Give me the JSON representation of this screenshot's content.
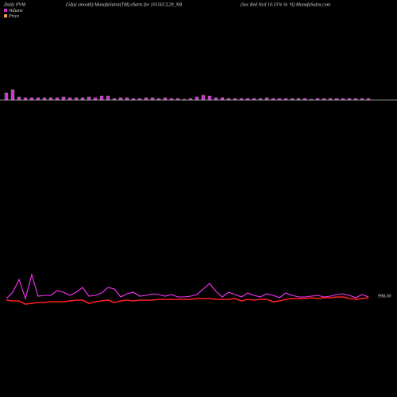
{
  "chart_data": {
    "type": "pvm",
    "title": "Daily PVM",
    "subtitle": "(5day smooth) MunafaSutra(TM) charts for 1015ECL29_NB",
    "annotation": "(Sec Red Ncd 10.15% Sr. Vi) MunafaSutra.com",
    "x": [
      0,
      1,
      2,
      3,
      4,
      5,
      6,
      7,
      8,
      9,
      10,
      11,
      12,
      13,
      14,
      15,
      16,
      17,
      18,
      19,
      20,
      21,
      22,
      23,
      24,
      25,
      26,
      27,
      28,
      29,
      30,
      31,
      32,
      33,
      34,
      35,
      36,
      37,
      38,
      39,
      40,
      41,
      42,
      43,
      44,
      45,
      46,
      47,
      48,
      49,
      50,
      51,
      52,
      53,
      54,
      55,
      56,
      57
    ],
    "xlim": [
      -1,
      59
    ],
    "volume": {
      "name": "Volume",
      "color": "#cc33cc",
      "ylim": [
        0,
        60
      ],
      "values": [
        9,
        13,
        4,
        3,
        3,
        3,
        3,
        3,
        3,
        4,
        3,
        3,
        3,
        4,
        3,
        5,
        5,
        2,
        3,
        3,
        2,
        2,
        3,
        3,
        2,
        3,
        2,
        2,
        1,
        2,
        4,
        6,
        5,
        3,
        3,
        2,
        2,
        2,
        2,
        2,
        2,
        3,
        2,
        2,
        2,
        2,
        2,
        2,
        1,
        2,
        2,
        2,
        2,
        2,
        2,
        2,
        2,
        2
      ]
    },
    "ylim": [
      993.5,
      1003
    ],
    "yticks": [
      {
        "value": 998,
        "label": "998.00"
      }
    ],
    "series": [
      {
        "name": "Price",
        "color": "#ff33ff",
        "legend_color": "#f0a050",
        "values": [
          997.7,
          998.5,
          1000.1,
          997.7,
          1000.7,
          998.0,
          998.1,
          998.1,
          998.7,
          998.5,
          998.1,
          998.5,
          999.1,
          998.0,
          998.1,
          998.4,
          999.1,
          998.9,
          997.9,
          998.3,
          998.5,
          998.0,
          998.1,
          998.3,
          998.2,
          998.0,
          998.2,
          997.9,
          997.9,
          998.0,
          998.2,
          998.9,
          999.6,
          998.6,
          997.9,
          998.5,
          998.2,
          997.9,
          998.4,
          998.1,
          997.9,
          998.3,
          998.1,
          997.8,
          998.4,
          998.1,
          997.9,
          997.9,
          998.0,
          998.1,
          997.9,
          998.0,
          998.2,
          998.3,
          998.1,
          997.8,
          998.2,
          997.9
        ]
      },
      {
        "color": "#ff2020",
        "values": [
          997.5,
          997.4,
          997.4,
          997.0,
          997.1,
          997.2,
          997.2,
          997.3,
          997.3,
          997.3,
          997.4,
          997.5,
          997.5,
          997.1,
          997.3,
          997.4,
          997.5,
          997.2,
          997.4,
          997.5,
          997.4,
          997.5,
          997.5,
          997.5,
          997.6,
          997.6,
          997.6,
          997.6,
          997.6,
          997.6,
          997.7,
          997.7,
          997.7,
          997.6,
          997.6,
          997.6,
          997.7,
          997.4,
          997.6,
          997.5,
          997.6,
          997.6,
          997.3,
          997.4,
          997.6,
          997.7,
          997.7,
          997.7,
          997.8,
          997.7,
          997.8,
          997.8,
          997.9,
          997.9,
          997.7,
          997.6,
          997.7,
          997.8
        ]
      }
    ]
  }
}
